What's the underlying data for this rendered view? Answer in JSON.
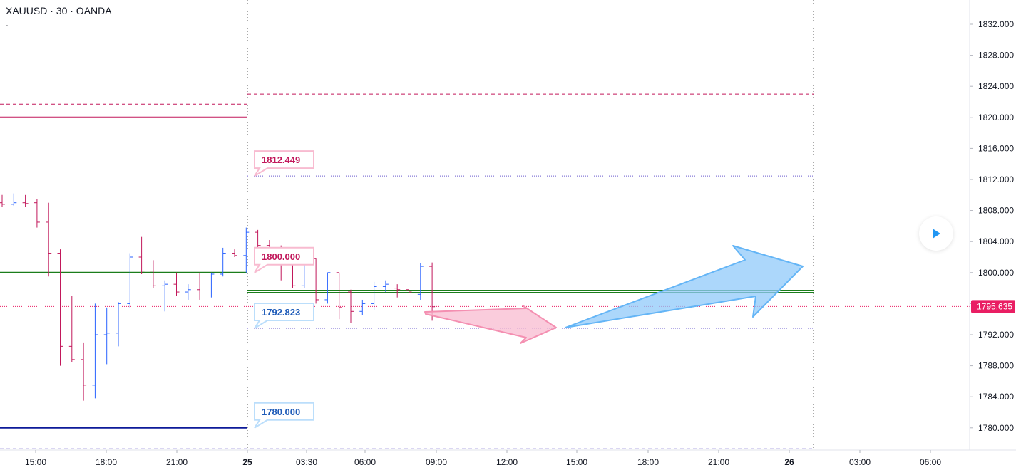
{
  "header": {
    "title": "XAUUSD · 30 · OANDA",
    "subtitle": "."
  },
  "colors": {
    "up": "#2962ff",
    "down": "#c2185b",
    "resistance_solid": "#c2185b",
    "support_solid": "#0d1a99",
    "pivot_green": "#1b7d1b",
    "dotted_purple": "#6a5acd",
    "last_price": "#e91e63",
    "arrow_pink": "#f8bbd0",
    "arrow_blue": "#90caf9"
  },
  "chart_data": {
    "type": "ohlc",
    "symbol": "XAUUSD",
    "interval": "30",
    "source": "OANDA",
    "ylim": [
      1776.0,
      1834.0
    ],
    "y_ticks": [
      "1832.000",
      "1828.000",
      "1824.000",
      "1820.000",
      "1816.000",
      "1812.000",
      "1808.000",
      "1804.000",
      "1800.000",
      "1796.000",
      "1792.000",
      "1788.000",
      "1784.000",
      "1780.000"
    ],
    "x_ticks": [
      "15:00",
      "18:00",
      "21:00",
      "25",
      "03:30",
      "06:00",
      "09:00",
      "12:00",
      "15:00",
      "18:00",
      "21:00",
      "26",
      "03:00",
      "06:00"
    ],
    "last_price": "1795.635",
    "bars": [
      {
        "o": 1809.0,
        "h": 1810.0,
        "l": 1808.5,
        "c": 1808.8
      },
      {
        "o": 1808.8,
        "h": 1810.2,
        "l": 1808.6,
        "c": 1809.0
      },
      {
        "o": 1809.0,
        "h": 1810.0,
        "l": 1808.5,
        "c": 1808.9
      },
      {
        "o": 1809.0,
        "h": 1809.5,
        "l": 1805.8,
        "c": 1806.5
      },
      {
        "o": 1806.5,
        "h": 1809.0,
        "l": 1799.5,
        "c": 1802.5
      },
      {
        "o": 1802.5,
        "h": 1803.0,
        "l": 1788.0,
        "c": 1790.5
      },
      {
        "o": 1790.5,
        "h": 1797.0,
        "l": 1788.5,
        "c": 1788.8
      },
      {
        "o": 1788.8,
        "h": 1791.0,
        "l": 1783.5,
        "c": 1785.5
      },
      {
        "o": 1785.5,
        "h": 1796.0,
        "l": 1783.8,
        "c": 1792.0
      },
      {
        "o": 1792.0,
        "h": 1795.5,
        "l": 1788.2,
        "c": 1792.2
      },
      {
        "o": 1792.2,
        "h": 1796.2,
        "l": 1790.5,
        "c": 1796.0
      },
      {
        "o": 1796.0,
        "h": 1802.5,
        "l": 1795.5,
        "c": 1802.0
      },
      {
        "o": 1802.0,
        "h": 1804.6,
        "l": 1799.8,
        "c": 1800.2
      },
      {
        "o": 1800.2,
        "h": 1801.6,
        "l": 1798.0,
        "c": 1798.3
      },
      {
        "o": 1798.3,
        "h": 1799.0,
        "l": 1795.0,
        "c": 1798.5
      },
      {
        "o": 1798.5,
        "h": 1800.0,
        "l": 1797.0,
        "c": 1797.5
      },
      {
        "o": 1797.5,
        "h": 1798.5,
        "l": 1796.5,
        "c": 1797.8
      },
      {
        "o": 1797.8,
        "h": 1800.0,
        "l": 1796.5,
        "c": 1797.0
      },
      {
        "o": 1797.0,
        "h": 1800.0,
        "l": 1796.8,
        "c": 1799.8
      },
      {
        "o": 1799.8,
        "h": 1803.2,
        "l": 1799.5,
        "c": 1802.5
      },
      {
        "o": 1802.5,
        "h": 1803.0,
        "l": 1802.0,
        "c": 1802.2
      },
      {
        "o": 1802.2,
        "h": 1805.8,
        "l": 1800.0,
        "c": 1805.2
      },
      {
        "o": 1805.2,
        "h": 1805.5,
        "l": 1802.0,
        "c": 1803.5
      },
      {
        "o": 1803.5,
        "h": 1804.2,
        "l": 1801.0,
        "c": 1802.8
      },
      {
        "o": 1803.0,
        "h": 1803.5,
        "l": 1799.0,
        "c": 1802.0
      },
      {
        "o": 1802.0,
        "h": 1802.5,
        "l": 1798.0,
        "c": 1798.3
      },
      {
        "o": 1798.3,
        "h": 1802.0,
        "l": 1798.0,
        "c": 1802.0
      },
      {
        "o": 1801.8,
        "h": 1801.8,
        "l": 1796.0,
        "c": 1796.5
      },
      {
        "o": 1796.5,
        "h": 1800.0,
        "l": 1796.0,
        "c": 1800.0
      },
      {
        "o": 1800.0,
        "h": 1800.0,
        "l": 1794.0,
        "c": 1795.5
      },
      {
        "o": 1797.5,
        "h": 1797.8,
        "l": 1793.5,
        "c": 1795.0
      },
      {
        "o": 1795.0,
        "h": 1796.5,
        "l": 1794.5,
        "c": 1796.0
      },
      {
        "o": 1796.0,
        "h": 1798.8,
        "l": 1795.2,
        "c": 1798.2
      },
      {
        "o": 1798.2,
        "h": 1799.0,
        "l": 1797.5,
        "c": 1798.5
      },
      {
        "o": 1798.0,
        "h": 1798.5,
        "l": 1796.8,
        "c": 1797.8
      },
      {
        "o": 1797.8,
        "h": 1798.5,
        "l": 1797.0,
        "c": 1797.5
      },
      {
        "o": 1797.2,
        "h": 1801.2,
        "l": 1796.5,
        "c": 1800.8
      },
      {
        "o": 1800.8,
        "h": 1801.3,
        "l": 1793.8,
        "c": 1795.6
      }
    ],
    "horizontal_lines": [
      {
        "name": "upper-dashed-left",
        "value": 1821.7,
        "style": "dashed",
        "color": "#c2185b"
      },
      {
        "name": "resistance-solid",
        "value": 1820.0,
        "style": "solid",
        "color": "#c2185b"
      },
      {
        "name": "upper-dashed-right",
        "value": 1823.0,
        "style": "dashed",
        "color": "#c2185b"
      },
      {
        "name": "pivot-green-left",
        "value": 1800.0,
        "style": "solid",
        "color": "#1b7d1b"
      },
      {
        "name": "pivot-green-right",
        "value": 1797.6,
        "style": "double",
        "color": "#1b7d1b"
      },
      {
        "name": "support-solid",
        "value": 1780.0,
        "style": "solid",
        "color": "#0d1a99"
      },
      {
        "name": "lower-dashed",
        "value": 1777.3,
        "style": "dashed",
        "color": "#6a5acd"
      },
      {
        "name": "dotted-1812",
        "value": 1812.449,
        "style": "dotted",
        "color": "#6a5acd"
      },
      {
        "name": "dotted-1792",
        "value": 1792.823,
        "style": "dotted",
        "color": "#6a5acd"
      },
      {
        "name": "last-price-dotted",
        "value": 1795.635,
        "style": "dotted",
        "color": "#e91e63"
      }
    ],
    "annotations": [
      {
        "text": "1812.449",
        "value": 1812.449,
        "color": "#c2185b",
        "border": "#f8bbd0"
      },
      {
        "text": "1800.000",
        "value": 1800.0,
        "color": "#c2185b",
        "border": "#f8bbd0"
      },
      {
        "text": "1792.823",
        "value": 1792.823,
        "color": "#1e5bb8",
        "border": "#bbdefb"
      },
      {
        "text": "1780.000",
        "value": 1780.0,
        "color": "#1e5bb8",
        "border": "#bbdefb"
      }
    ]
  }
}
